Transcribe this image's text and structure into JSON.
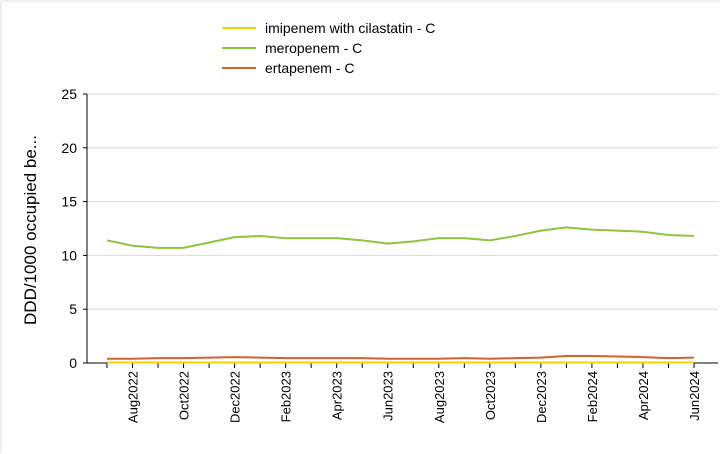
{
  "chart_data": {
    "type": "line",
    "y_label": "DDD/1000  occupied be...",
    "categories": [
      null,
      "Aug2022",
      null,
      "Oct2022",
      null,
      "Dec2022",
      null,
      "Feb2023",
      null,
      "Apr2023",
      null,
      "Jun2023",
      null,
      "Aug2023",
      null,
      "Oct2023",
      null,
      "Dec2023",
      null,
      "Feb2024",
      null,
      "Apr2024",
      null,
      "Jun2024"
    ],
    "series": [
      {
        "name": "imipenem with cilastatin - C",
        "color": "#f2d600",
        "values": [
          0.05,
          0.05,
          0.05,
          0.05,
          0.05,
          0.05,
          0.05,
          0.05,
          0.05,
          0.05,
          0.05,
          0.05,
          0.05,
          0.05,
          0.05,
          0.05,
          0.05,
          0.05,
          0.05,
          0.05,
          0.05,
          0.05,
          0.05,
          0.05
        ]
      },
      {
        "name": "meropenem - C",
        "color": "#8cc63f",
        "values": [
          11.4,
          10.9,
          10.7,
          10.7,
          11.2,
          11.7,
          11.8,
          11.6,
          11.6,
          11.6,
          11.4,
          11.1,
          11.3,
          11.6,
          11.6,
          11.4,
          11.8,
          12.3,
          12.6,
          12.4,
          12.3,
          12.2,
          11.9,
          11.8
        ]
      },
      {
        "name": "ertapenem - C",
        "color": "#d2642a",
        "values": [
          0.4,
          0.4,
          0.45,
          0.45,
          0.5,
          0.55,
          0.5,
          0.45,
          0.45,
          0.45,
          0.45,
          0.4,
          0.4,
          0.4,
          0.45,
          0.4,
          0.45,
          0.5,
          0.65,
          0.65,
          0.6,
          0.55,
          0.45,
          0.5
        ]
      }
    ],
    "ylim": [
      0,
      25
    ],
    "yticks": [
      0,
      5,
      10,
      15,
      20,
      25
    ],
    "grid": true
  }
}
